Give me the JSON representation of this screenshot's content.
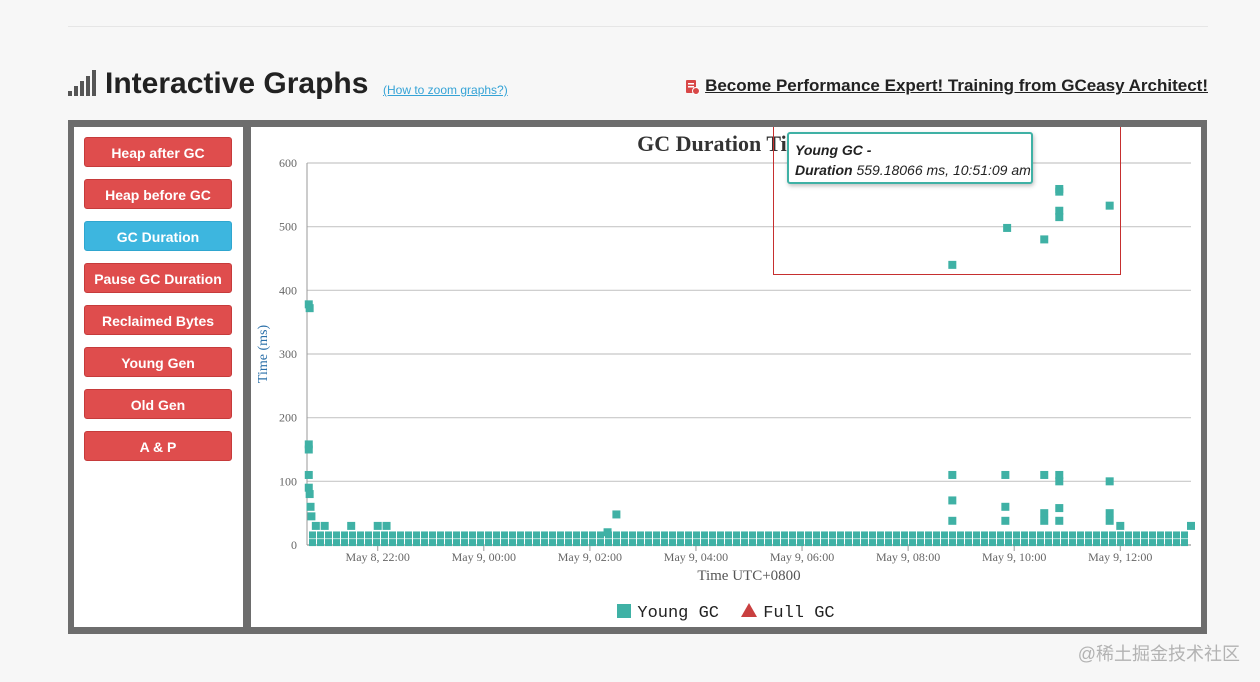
{
  "header": {
    "title": "Interactive Graphs",
    "zoom_link": "(How to zoom graphs?)",
    "training_link": "Become Performance Expert! Training from GCeasy Architect!"
  },
  "nav": [
    {
      "label": "Heap after GC",
      "active": false
    },
    {
      "label": "Heap before GC",
      "active": false
    },
    {
      "label": "GC Duration",
      "active": true
    },
    {
      "label": "Pause GC Duration",
      "active": false
    },
    {
      "label": "Reclaimed Bytes",
      "active": false
    },
    {
      "label": "Young Gen",
      "active": false
    },
    {
      "label": "Old Gen",
      "active": false
    },
    {
      "label": "A & P",
      "active": false
    }
  ],
  "tooltip": {
    "series": "Young GC -",
    "field": "Duration",
    "value": "559.18066 ms, 10:51:09 am"
  },
  "chart_data": {
    "type": "scatter",
    "title": "GC Duration Time",
    "xlabel": "Time UTC+0800",
    "ylabel": "Time (ms)",
    "ylim": [
      0,
      600
    ],
    "yticks": [
      0,
      100,
      200,
      300,
      400,
      500,
      600
    ],
    "xlim": [
      20.7,
      13.35
    ],
    "xticks": [
      "May 8, 22:00",
      "May 9, 00:00",
      "May 9, 02:00",
      "May 9, 04:00",
      "May 9, 06:00",
      "May 9, 08:00",
      "May 9, 10:00",
      "May 9, 12:00"
    ],
    "grid": true,
    "legend_position": "bottom",
    "colors": {
      "young": "#3fb1a5",
      "full": "#c94040"
    },
    "series": [
      {
        "name": "Young GC",
        "baseline_ms": 15,
        "points": [
          [
            "May 8, 20:42",
            378
          ],
          [
            "May 8, 20:43",
            372
          ],
          [
            "May 8, 20:42",
            158
          ],
          [
            "May 8, 20:42",
            150
          ],
          [
            "May 8, 20:42",
            110
          ],
          [
            "May 8, 20:42",
            90
          ],
          [
            "May 8, 20:43",
            80
          ],
          [
            "May 8, 20:44",
            60
          ],
          [
            "May 8, 20:45",
            45
          ],
          [
            "May 8, 20:50",
            30
          ],
          [
            "May 8, 21:00",
            30
          ],
          [
            "May 8, 21:30",
            30
          ],
          [
            "May 8, 22:00",
            30
          ],
          [
            "May 8, 22:10",
            30
          ],
          [
            "May 9, 02:30",
            48
          ],
          [
            "May 9, 02:20",
            20
          ],
          [
            "May 9, 08:50",
            440
          ],
          [
            "May 9, 08:50",
            110
          ],
          [
            "May 9, 08:50",
            70
          ],
          [
            "May 9, 08:50",
            38
          ],
          [
            "May 9, 09:50",
            110
          ],
          [
            "May 9, 09:50",
            60
          ],
          [
            "May 9, 09:50",
            38
          ],
          [
            "May 9, 09:52",
            498
          ],
          [
            "May 9, 10:34",
            480
          ],
          [
            "May 9, 10:34",
            110
          ],
          [
            "May 9, 10:34",
            50
          ],
          [
            "May 9, 10:34",
            38
          ],
          [
            "May 9, 10:51",
            559.18066
          ],
          [
            "May 9, 10:51",
            555
          ],
          [
            "May 9, 10:51",
            525
          ],
          [
            "May 9, 10:51",
            515
          ],
          [
            "May 9, 10:51",
            110
          ],
          [
            "May 9, 10:51",
            100
          ],
          [
            "May 9, 10:51",
            58
          ],
          [
            "May 9, 10:51",
            38
          ],
          [
            "May 9, 11:48",
            533
          ],
          [
            "May 9, 11:48",
            100
          ],
          [
            "May 9, 11:48",
            50
          ],
          [
            "May 9, 11:48",
            38
          ],
          [
            "May 9, 12:00",
            30
          ],
          [
            "May 9, 13:20",
            30
          ]
        ]
      },
      {
        "name": "Full GC",
        "points": []
      }
    ]
  },
  "watermark": "@稀土掘金技术社区"
}
